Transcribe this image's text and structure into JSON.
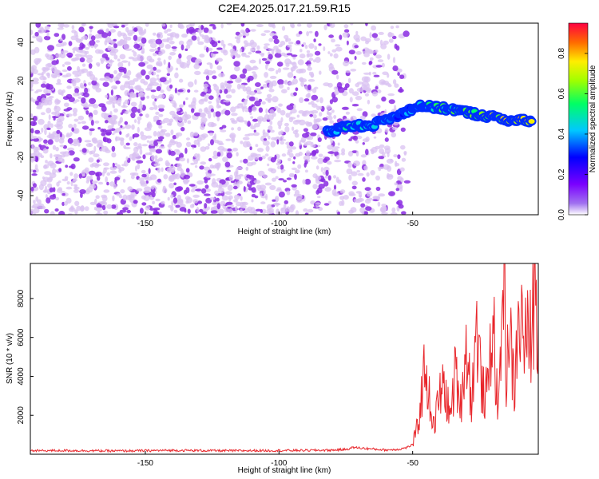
{
  "chart_data": [
    {
      "type": "heatmap",
      "title": "C2E4.2025.017.21.59.R15",
      "xlabel": "Height of straight line (km)",
      "ylabel": "Frequency (Hz)",
      "xlim": [
        -193,
        -3
      ],
      "ylim": [
        -50,
        50
      ],
      "xticks": [
        -150,
        -100,
        -50
      ],
      "yticks": [
        -40,
        -20,
        0,
        20,
        40
      ],
      "colorbar": {
        "label": "Normalized spectral amplitude",
        "range": [
          0.0,
          0.95
        ],
        "ticks": [
          0.0,
          0.2,
          0.4,
          0.6,
          0.8
        ],
        "tick_labels": [
          "0.0",
          "0.2",
          "0.4",
          "0.6",
          "0.8"
        ],
        "colormap": "rainbow"
      },
      "signal_ridge": {
        "x": [
          -82,
          -75,
          -65,
          -55,
          -48,
          -42,
          -35,
          -28,
          -20,
          -12,
          -5
        ],
        "y": [
          -7,
          -4,
          -3,
          2,
          7,
          6,
          5,
          3,
          1,
          -1,
          -1
        ],
        "peak_amplitude": [
          0.4,
          0.45,
          0.4,
          0.35,
          0.45,
          0.55,
          0.6,
          0.65,
          0.8,
          0.9,
          0.85
        ]
      },
      "noise_extent_x": [
        -193,
        -52
      ],
      "colors": {
        "noise_light": "#d9c2f2",
        "noise_dark": "#8a2be2"
      }
    },
    {
      "type": "line",
      "xlabel": "Height of straight line (km)",
      "ylabel": "SNR (10 * v/v)",
      "xlim": [
        -193,
        -3
      ],
      "ylim": [
        0,
        9800
      ],
      "xticks": [
        -150,
        -100,
        -50
      ],
      "yticks": [
        2000,
        4000,
        6000,
        8000
      ],
      "series": [
        {
          "color": "#e8262b",
          "x": [
            -193,
            -180,
            -160,
            -140,
            -120,
            -100,
            -90,
            -80,
            -75,
            -72,
            -68,
            -60,
            -55,
            -52,
            -50,
            -48,
            -46,
            -45,
            -44,
            -43,
            -42,
            -40,
            -38,
            -36,
            -34,
            -32,
            -30,
            -28,
            -26,
            -24,
            -22,
            -20,
            -18,
            -17,
            -16,
            -15,
            -14,
            -12,
            -10,
            -8,
            -6,
            -4,
            -3
          ],
          "y": [
            180,
            190,
            170,
            200,
            180,
            190,
            200,
            210,
            250,
            350,
            300,
            220,
            260,
            350,
            500,
            1500,
            3800,
            4800,
            3000,
            2200,
            1400,
            3000,
            3500,
            1800,
            4200,
            2600,
            5600,
            2800,
            6500,
            3200,
            3100,
            7300,
            1700,
            5800,
            9800,
            4200,
            6600,
            3300,
            7200,
            5800,
            6000,
            8800,
            6900
          ]
        }
      ]
    }
  ]
}
